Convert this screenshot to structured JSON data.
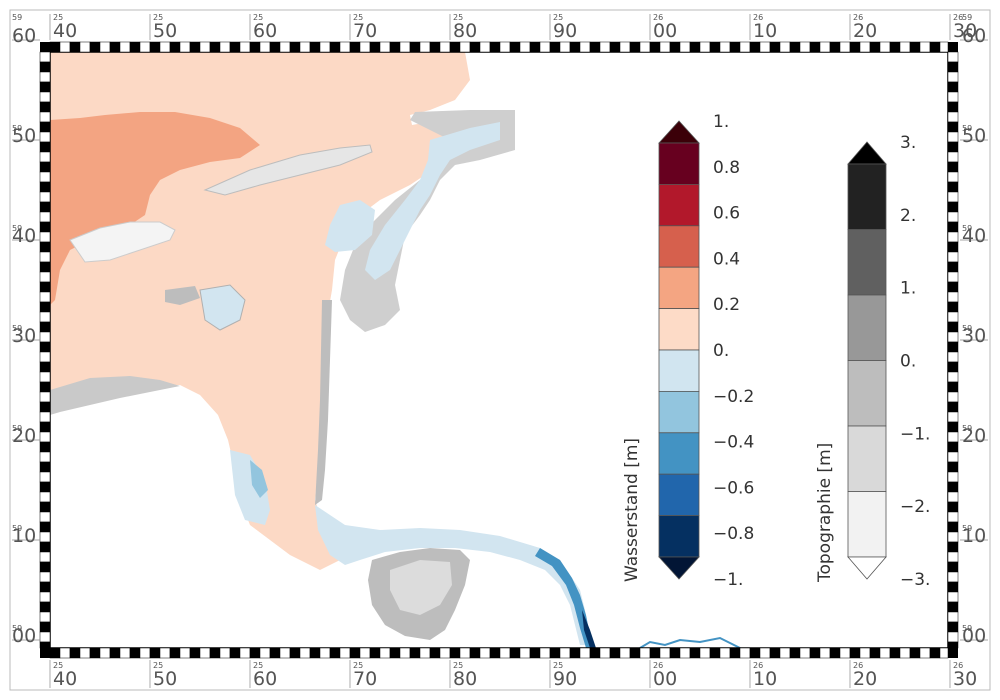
{
  "map": {
    "x_axis": {
      "labels": [
        "40",
        "50",
        "60",
        "70",
        "80",
        "90",
        "00",
        "10",
        "20",
        "30"
      ],
      "superscripts": [
        "25",
        "25",
        "25",
        "25",
        "25",
        "25",
        "26",
        "26",
        "26",
        "26"
      ]
    },
    "y_axis": {
      "labels": [
        "60",
        "50",
        "40",
        "30",
        "20",
        "10",
        "00"
      ],
      "superscripts": [
        "59",
        "59",
        "59",
        "59",
        "59",
        "59",
        "59"
      ]
    }
  },
  "colorbar_wasserstand": {
    "title": "Wasserstand [m]",
    "tick_labels": [
      "1.",
      "0.8",
      "0.6",
      "0.4",
      "0.2",
      "0.",
      "−0.2",
      "−0.4",
      "−0.6",
      "−0.8",
      "−1."
    ],
    "colors": [
      "#67001f",
      "#b2182b",
      "#d6604d",
      "#f4a582",
      "#fddbc7",
      "#d1e5f0",
      "#92c5de",
      "#4393c3",
      "#2166ac",
      "#053061"
    ],
    "over_color": "#3b0008",
    "under_color": "#021535"
  },
  "colorbar_topographie": {
    "title": "Topographie [m]",
    "tick_labels": [
      "3.",
      "2.",
      "1.",
      "0.",
      "−1.",
      "−2.",
      "−3."
    ],
    "colors": [
      "#222222",
      "#606060",
      "#989898",
      "#bdbdbd",
      "#d9d9d9",
      "#f2f2f2"
    ],
    "over_color": "#000000",
    "under_color": "#ffffff"
  },
  "colors": {
    "water_pos_low": "#fcd9c5",
    "water_pos_mid": "#f3a482",
    "water_neg_low": "#d2e5f0",
    "water_neg_mid": "#93c5de",
    "topo_light": "#dcdcdc",
    "topo_mid": "#b5b5b5",
    "frame": "#000000"
  }
}
